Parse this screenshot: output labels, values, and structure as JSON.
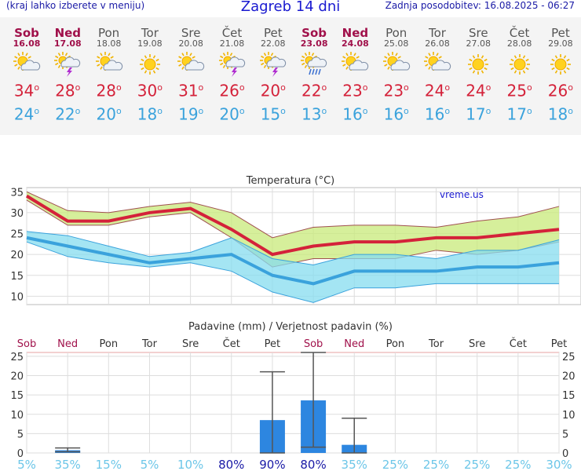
{
  "header": {
    "left": "(kraj lahko izberete v meniju)",
    "title": "Zagreb 14 dni",
    "right": "Zadnja posodobitev: 16.08.2025 - 06:27"
  },
  "colors": {
    "weekend": "#a0104a",
    "max_temp": "#d4223a",
    "min_temp": "#3aa2dc",
    "bar": "#2d86e0",
    "max_band": "#c8ea7a",
    "min_band": "#86dcef",
    "prob_high": "#1a1aa6",
    "prob_low": "#6cc6e8"
  },
  "days": [
    {
      "name": "Sob",
      "date": "16.08",
      "weekend": true,
      "icon": "sun-cloud-icon",
      "tmax": "34",
      "tmin": "24"
    },
    {
      "name": "Ned",
      "date": "17.08",
      "weekend": true,
      "icon": "thunderstorm-icon",
      "tmax": "28",
      "tmin": "22"
    },
    {
      "name": "Pon",
      "date": "18.08",
      "weekend": false,
      "icon": "sun-cloud-icon",
      "tmax": "28",
      "tmin": "20"
    },
    {
      "name": "Tor",
      "date": "19.08",
      "weekend": false,
      "icon": "sun-icon",
      "tmax": "30",
      "tmin": "18"
    },
    {
      "name": "Sre",
      "date": "20.08",
      "weekend": false,
      "icon": "sun-cloud-icon",
      "tmax": "31",
      "tmin": "19"
    },
    {
      "name": "Čet",
      "date": "21.08",
      "weekend": false,
      "icon": "thunderstorm-icon",
      "tmax": "26",
      "tmin": "20"
    },
    {
      "name": "Pet",
      "date": "22.08",
      "weekend": false,
      "icon": "thunderstorm-icon",
      "tmax": "20",
      "tmin": "15"
    },
    {
      "name": "Sob",
      "date": "23.08",
      "weekend": true,
      "icon": "sun-rain-icon",
      "tmax": "22",
      "tmin": "13"
    },
    {
      "name": "Ned",
      "date": "24.08",
      "weekend": true,
      "icon": "sun-cloud-icon",
      "tmax": "23",
      "tmin": "16"
    },
    {
      "name": "Pon",
      "date": "25.08",
      "weekend": false,
      "icon": "sun-cloud-icon",
      "tmax": "23",
      "tmin": "16"
    },
    {
      "name": "Tor",
      "date": "26.08",
      "weekend": false,
      "icon": "sun-cloud-icon",
      "tmax": "24",
      "tmin": "16"
    },
    {
      "name": "Sre",
      "date": "27.08",
      "weekend": false,
      "icon": "sun-icon",
      "tmax": "24",
      "tmin": "17"
    },
    {
      "name": "Čet",
      "date": "28.08",
      "weekend": false,
      "icon": "sun-icon",
      "tmax": "25",
      "tmin": "17"
    },
    {
      "name": "Pet",
      "date": "29.08",
      "weekend": false,
      "icon": "sun-icon",
      "tmax": "26",
      "tmin": "18"
    }
  ],
  "degree_symbol": "o",
  "chart_data": [
    {
      "type": "line",
      "title": "Temperatura (°C)",
      "watermark": "vreme.us",
      "ylim": [
        8,
        36
      ],
      "yticks": [
        10,
        15,
        20,
        25,
        30,
        35
      ],
      "grid": true,
      "series": [
        {
          "role": "max",
          "values": [
            34,
            28,
            28,
            30,
            31,
            26,
            20,
            22,
            23,
            23,
            24,
            24,
            25,
            26
          ],
          "band_low": [
            33,
            27,
            27,
            29,
            30,
            24,
            17,
            19,
            19,
            19,
            21,
            20,
            21,
            23
          ],
          "band_high": [
            35,
            30.5,
            30,
            31.5,
            32.5,
            30,
            24,
            26.5,
            27,
            27,
            26.5,
            28,
            29,
            31.5
          ]
        },
        {
          "role": "min",
          "values": [
            24,
            22,
            20,
            18,
            19,
            20,
            15,
            13,
            16,
            16,
            16,
            17,
            17,
            18
          ],
          "band_low": [
            23,
            19.5,
            18,
            17,
            18,
            16,
            11,
            8.5,
            12,
            12,
            13,
            13,
            13,
            13
          ],
          "band_high": [
            25.5,
            24.5,
            22,
            19.5,
            20.5,
            24,
            19,
            17.5,
            20,
            20,
            19,
            21,
            21,
            23.5
          ]
        }
      ]
    },
    {
      "type": "bar",
      "title": "Padavine (mm) / Verjetnost padavin (%)",
      "categories": [
        "Sob",
        "Ned",
        "Pon",
        "Tor",
        "Sre",
        "Čet",
        "Pet",
        "Sob",
        "Ned",
        "Pon",
        "Tor",
        "Sre",
        "Čet",
        "Pet"
      ],
      "weekend": [
        true,
        true,
        false,
        false,
        false,
        false,
        false,
        true,
        true,
        false,
        false,
        false,
        false,
        false
      ],
      "ylim": [
        0,
        26
      ],
      "yticks": [
        0,
        5,
        10,
        15,
        20,
        25
      ],
      "grid": true,
      "values": [
        0,
        0.7,
        0,
        0,
        0,
        0,
        8.5,
        13.6,
        2.1,
        0,
        0,
        0,
        0,
        0
      ],
      "error_low": [
        null,
        0.3,
        null,
        null,
        null,
        null,
        0,
        1.5,
        0,
        null,
        null,
        null,
        null,
        null
      ],
      "error_high": [
        null,
        1.3,
        null,
        null,
        null,
        null,
        21,
        26,
        9,
        null,
        null,
        null,
        null,
        null
      ],
      "probability": [
        "5%",
        "35%",
        "15%",
        "5%",
        "10%",
        "80%",
        "90%",
        "80%",
        "35%",
        "25%",
        "25%",
        "25%",
        "25%",
        "30%"
      ],
      "probability_high": [
        false,
        false,
        false,
        false,
        false,
        true,
        true,
        true,
        false,
        false,
        false,
        false,
        false,
        false
      ]
    }
  ]
}
